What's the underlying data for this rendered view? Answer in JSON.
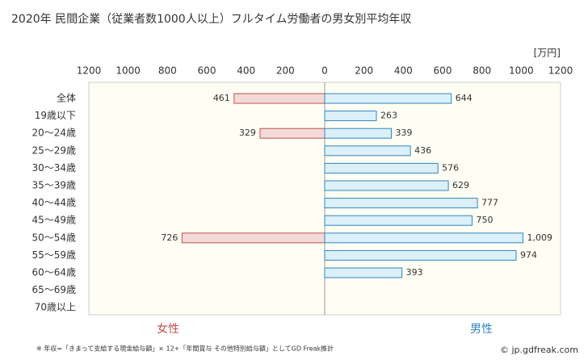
{
  "chart_data": {
    "type": "butterfly",
    "title": "2020年 民間企業（従業者数1000人以上）フルタイム労働者の男女別平均年収",
    "unit": "[万円]",
    "categories": [
      "全体",
      "19歳以下",
      "20〜24歳",
      "25〜29歳",
      "30〜34歳",
      "35〜39歳",
      "40〜44歳",
      "45〜49歳",
      "50〜54歳",
      "55〜59歳",
      "60〜64歳",
      "65〜69歳",
      "70歳以上"
    ],
    "series": [
      {
        "name": "女性",
        "side": "left",
        "color": "#c0504d",
        "fill": "#f4d9d9",
        "values": [
          461,
          null,
          329,
          null,
          null,
          null,
          null,
          null,
          726,
          null,
          null,
          null,
          null
        ]
      },
      {
        "name": "男性",
        "side": "right",
        "color": "#2e86c1",
        "fill": "#dcf0fa",
        "values": [
          644,
          263,
          339,
          436,
          576,
          629,
          777,
          750,
          1009,
          974,
          393,
          null,
          null
        ],
        "value_labels": [
          "644",
          "263",
          "339",
          "436",
          "576",
          "629",
          "777",
          "750",
          "1,009",
          "974",
          "393",
          null,
          null
        ]
      }
    ],
    "xlim": [
      0,
      1200
    ],
    "xticks": [
      0,
      200,
      400,
      600,
      800,
      1000,
      1200
    ],
    "footnote": "※ 年収=「きまって支給する現金給与額」× 12+「年間賞与 その他特別給与額」としてGD Freak推計",
    "credit": "© jp.gdfreak.com"
  }
}
